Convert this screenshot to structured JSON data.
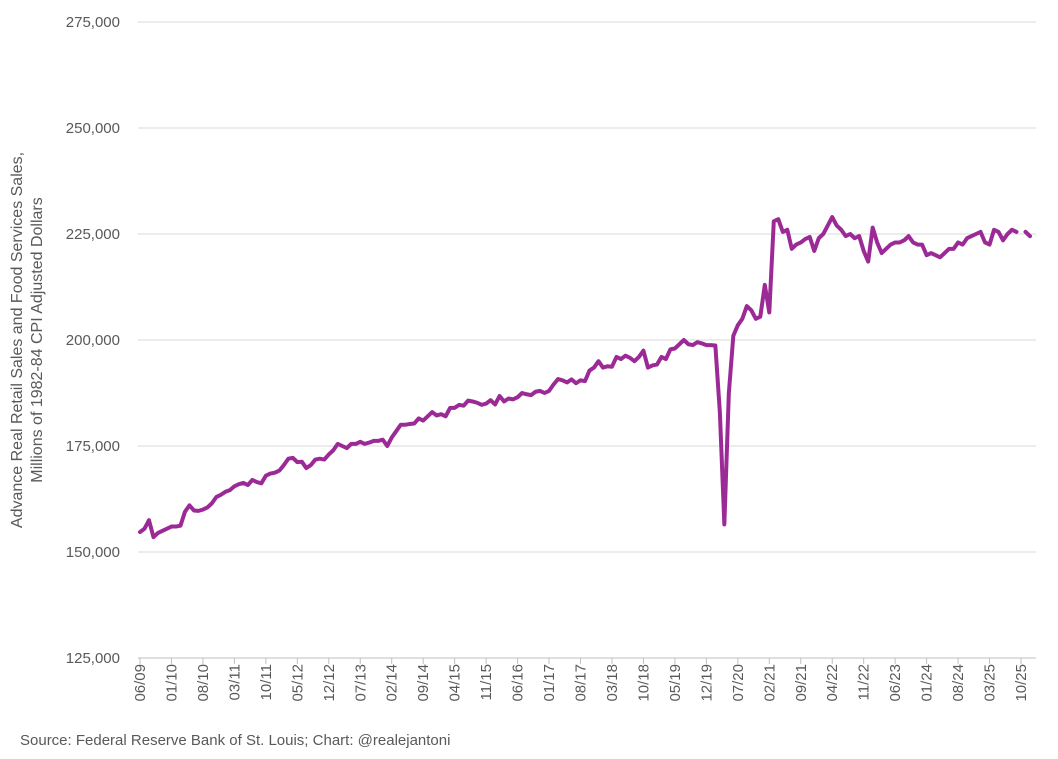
{
  "chart_data": {
    "type": "line",
    "ylabel": [
      "Advance Real Retail Sales and Food Services Sales,",
      "Millions of 1982-84 CPI Adjusted Dollars"
    ],
    "source": "Source: Federal Reserve Bank of St. Louis; Chart: @realejantoni",
    "color": "#9c2a96",
    "grid": true,
    "ylim": [
      125000,
      275000
    ],
    "yticks": [
      {
        "value": 125000,
        "label": "125,000"
      },
      {
        "value": 150000,
        "label": "150,000"
      },
      {
        "value": 175000,
        "label": "175,000"
      },
      {
        "value": 200000,
        "label": "200,000"
      },
      {
        "value": 225000,
        "label": "225,000"
      },
      {
        "value": 250000,
        "label": "250,000"
      },
      {
        "value": 275000,
        "label": "275,000"
      }
    ],
    "categories": [
      "06/09",
      null,
      null,
      null,
      null,
      null,
      null,
      "01/10",
      null,
      null,
      null,
      null,
      null,
      null,
      "08/10",
      null,
      null,
      null,
      null,
      null,
      null,
      "03/11",
      null,
      null,
      null,
      null,
      null,
      null,
      "10/11",
      null,
      null,
      null,
      null,
      null,
      null,
      "05/12",
      null,
      null,
      null,
      null,
      null,
      null,
      "12/12",
      null,
      null,
      null,
      null,
      null,
      null,
      "07/13",
      null,
      null,
      null,
      null,
      null,
      null,
      "02/14",
      null,
      null,
      null,
      null,
      null,
      null,
      "09/14",
      null,
      null,
      null,
      null,
      null,
      null,
      "04/15",
      null,
      null,
      null,
      null,
      null,
      null,
      "11/15",
      null,
      null,
      null,
      null,
      null,
      null,
      "06/16",
      null,
      null,
      null,
      null,
      null,
      null,
      "01/17",
      null,
      null,
      null,
      null,
      null,
      null,
      "08/17",
      null,
      null,
      null,
      null,
      null,
      null,
      "03/18",
      null,
      null,
      null,
      null,
      null,
      null,
      "10/18",
      null,
      null,
      null,
      null,
      null,
      null,
      "05/19",
      null,
      null,
      null,
      null,
      null,
      null,
      "12/19",
      null,
      null,
      null,
      null,
      null,
      null,
      "07/20",
      null,
      null,
      null,
      null,
      null,
      null,
      "02/21",
      null,
      null,
      null,
      null,
      null,
      null,
      "09/21",
      null,
      null,
      null,
      null,
      null,
      null,
      "04/22",
      null,
      null,
      null,
      null,
      null,
      null,
      "11/22",
      null,
      null,
      null,
      null,
      null,
      null,
      "06/23",
      null,
      null,
      null,
      null,
      null,
      null,
      "01/24",
      null,
      null,
      null,
      null,
      null,
      null,
      "08/24",
      null,
      null,
      null,
      null,
      null,
      null,
      "03/25",
      null,
      null,
      null,
      null,
      null,
      null,
      "10/25",
      null,
      null
    ],
    "values": [
      154700,
      155500,
      157500,
      153500,
      154500,
      155000,
      155500,
      156000,
      156000,
      156200,
      159500,
      161000,
      159800,
      159700,
      160000,
      160500,
      161500,
      163000,
      163500,
      164200,
      164600,
      165500,
      166000,
      166300,
      165800,
      167000,
      166500,
      166200,
      168000,
      168500,
      168700,
      169200,
      170500,
      172000,
      172200,
      171200,
      171300,
      169800,
      170500,
      171800,
      172000,
      171800,
      173000,
      174000,
      175500,
      175000,
      174500,
      175500,
      175500,
      176000,
      175500,
      175800,
      176200,
      176200,
      176500,
      175000,
      177000,
      178500,
      180000,
      180000,
      180200,
      180300,
      181500,
      181000,
      182000,
      183000,
      182200,
      182500,
      182000,
      184000,
      184000,
      184700,
      184500,
      185700,
      185500,
      185200,
      184700,
      185000,
      185800,
      184800,
      186800,
      185500,
      186200,
      186000,
      186500,
      187500,
      187200,
      187000,
      187800,
      188000,
      187500,
      188000,
      189500,
      190800,
      190500,
      190000,
      190700,
      189800,
      190500,
      190300,
      192800,
      193500,
      195000,
      193500,
      193800,
      193700,
      196000,
      195500,
      196300,
      195800,
      195000,
      196000,
      197500,
      193500,
      194000,
      194200,
      196000,
      195500,
      197800,
      198000,
      199000,
      200000,
      199000,
      198800,
      199500,
      199200,
      198800,
      198800,
      198700,
      183000,
      156500,
      187500,
      201000,
      203500,
      205000,
      208000,
      207000,
      205000,
      205500,
      213000,
      206500,
      228000,
      228500,
      225500,
      226000,
      221500,
      222500,
      223000,
      223800,
      224300,
      221000,
      224000,
      225000,
      227000,
      229000,
      227000,
      226000,
      224500,
      225000,
      224000,
      224500,
      221000,
      218500,
      226500,
      223000,
      220500,
      221500,
      222500,
      223000,
      223000,
      223500,
      224500,
      223000,
      222500,
      222500,
      220000,
      220500,
      220000,
      219500,
      220500,
      221500,
      221500,
      223000,
      222500,
      224000,
      224500,
      225000,
      225500,
      223000,
      222500,
      226000,
      225500,
      223500,
      225000,
      226000,
      225500,
      null,
      225500,
      224500
    ]
  }
}
